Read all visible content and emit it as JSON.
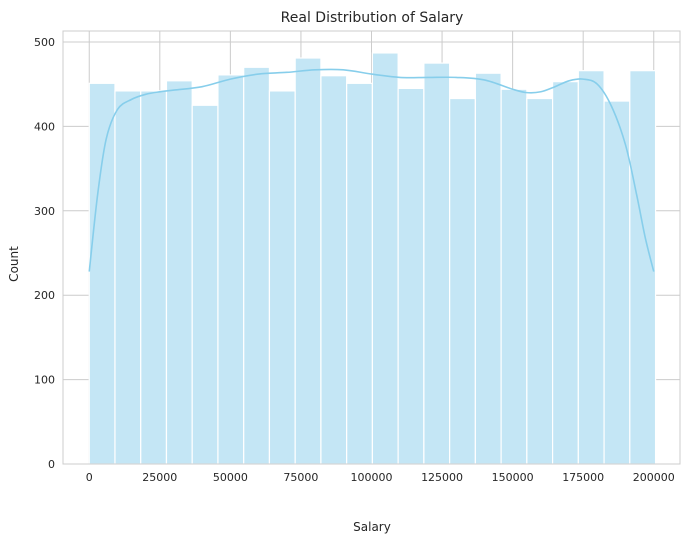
{
  "chart_data": {
    "type": "bar",
    "title": "Real Distribution of Salary",
    "xlabel": "Salary",
    "ylabel": "Count",
    "xlim": [
      -9300,
      209300
    ],
    "ylim": [
      0,
      513
    ],
    "xticks": [
      0,
      25000,
      50000,
      75000,
      100000,
      125000,
      150000,
      175000,
      200000
    ],
    "yticks": [
      0,
      100,
      200,
      300,
      400,
      500
    ],
    "grid": true,
    "bin_edges": [
      0,
      9120,
      18240,
      27360,
      36480,
      45600,
      54720,
      63840,
      72960,
      82080,
      91200,
      100320,
      109440,
      118560,
      127680,
      136800,
      145920,
      155040,
      164160,
      173280,
      182400,
      191520,
      200640
    ],
    "values": [
      451,
      442,
      442,
      454,
      425,
      461,
      470,
      442,
      481,
      460,
      451,
      487,
      445,
      475,
      433,
      463,
      444,
      433,
      453,
      466,
      430,
      466
    ],
    "kde": {
      "x": [
        0,
        3000,
        6000,
        10000,
        15000,
        20000,
        25000,
        30000,
        40000,
        50000,
        60000,
        70000,
        80000,
        90000,
        100000,
        110000,
        120000,
        130000,
        140000,
        150000,
        155000,
        160000,
        165000,
        170000,
        175000,
        180000,
        185000,
        190000,
        194000,
        197000,
        200000
      ],
      "y": [
        228,
        320,
        385,
        420,
        432,
        438,
        441,
        443,
        447,
        456,
        462,
        464,
        467,
        467,
        462,
        458,
        458,
        458,
        455,
        444,
        440,
        441,
        447,
        454,
        456,
        450,
        424,
        378,
        318,
        268,
        228
      ]
    },
    "bar_color": "#c4e6f5",
    "line_color": "#87ceeb",
    "grid_color": "#cccccc"
  }
}
